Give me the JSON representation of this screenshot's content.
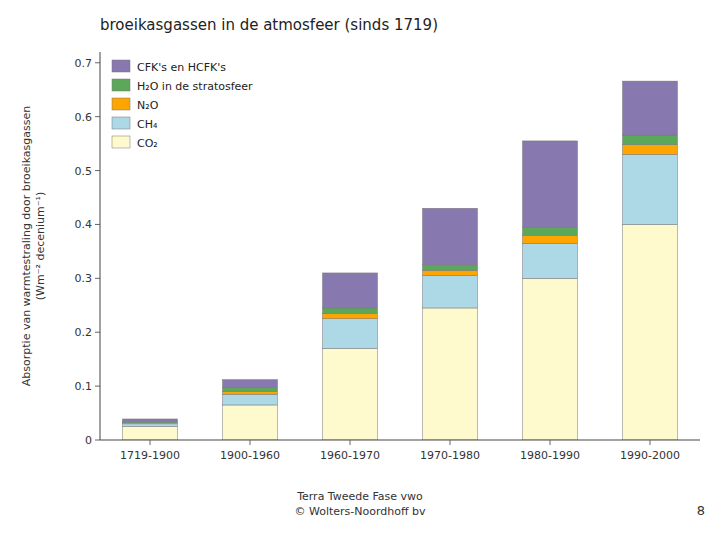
{
  "chart_data": {
    "type": "bar",
    "stacked": true,
    "title": "broeikasgassen in de atmosfeer (sinds 1719)",
    "ylabel": [
      "Absorptie van warmtestraling door broeikasgassen",
      "(Wm⁻² decenium⁻¹)"
    ],
    "categories": [
      "1719-1900",
      "1900-1960",
      "1960-1970",
      "1970-1980",
      "1980-1990",
      "1990-2000"
    ],
    "series": [
      {
        "name": "CO₂",
        "color": "#FFFACD",
        "values": [
          0.025,
          0.065,
          0.17,
          0.245,
          0.3,
          0.4
        ]
      },
      {
        "name": "CH₄",
        "color": "#ADD8E6",
        "values": [
          0.005,
          0.02,
          0.055,
          0.06,
          0.065,
          0.13
        ]
      },
      {
        "name": "N₂O",
        "color": "#FFA500",
        "values": [
          0.002,
          0.005,
          0.01,
          0.01,
          0.015,
          0.018
        ]
      },
      {
        "name": "H₂O in de stratosfeer",
        "color": "#5BA85B",
        "values": [
          0.002,
          0.007,
          0.01,
          0.01,
          0.015,
          0.018
        ]
      },
      {
        "name": "CFK's en HCFK's",
        "color": "#8878B0",
        "values": [
          0.005,
          0.015,
          0.065,
          0.105,
          0.16,
          0.1
        ]
      }
    ],
    "ylim": [
      0,
      0.72
    ],
    "yticks": [
      0,
      0.1,
      0.2,
      0.3,
      0.4,
      0.5,
      0.6,
      0.7
    ],
    "grid": false,
    "legend": "upper left",
    "annotations": [
      "Terra Tweede Fase vwo",
      "© Wolters-Noordhoff bv",
      "8"
    ]
  }
}
